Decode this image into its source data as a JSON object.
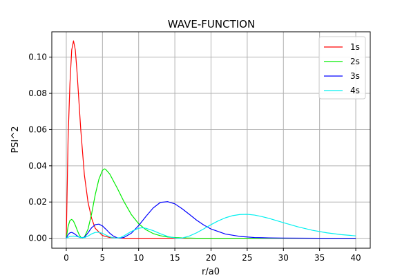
{
  "chart_data": {
    "type": "line",
    "title": "WAVE-FUNCTION",
    "xlabel": "r/a0",
    "ylabel": "PSI^2",
    "xlim": [
      -2,
      42
    ],
    "ylim": [
      -0.0055,
      0.114
    ],
    "xticks": [
      0,
      5,
      10,
      15,
      20,
      25,
      30,
      35,
      40
    ],
    "yticks": [
      0.0,
      0.02,
      0.04,
      0.06,
      0.08,
      0.1
    ],
    "ytick_labels": [
      "0.00",
      "0.02",
      "0.04",
      "0.06",
      "0.08",
      "0.10"
    ],
    "grid": true,
    "legend_position": "top-right",
    "series": [
      {
        "name": "1s",
        "color": "#ff0000",
        "x": [
          0,
          0.25,
          0.5,
          0.75,
          1.0,
          1.25,
          1.5,
          2.0,
          2.5,
          3.0,
          3.5,
          4.0,
          5.0,
          6.0,
          8.0,
          10,
          15,
          20,
          40
        ],
        "y": [
          0,
          0.055,
          0.085,
          0.104,
          0.109,
          0.104,
          0.091,
          0.06,
          0.035,
          0.02,
          0.011,
          0.0055,
          0.0015,
          0.0004,
          0.0,
          0.0,
          0.0,
          0.0,
          0.0
        ]
      },
      {
        "name": "2s",
        "color": "#00ee00",
        "x": [
          0,
          0.25,
          0.5,
          0.75,
          1.0,
          1.25,
          1.5,
          1.75,
          2.0,
          2.25,
          2.5,
          3.0,
          3.5,
          4.0,
          4.5,
          5.0,
          5.3,
          5.5,
          6.0,
          7.0,
          8.0,
          9.0,
          10,
          11,
          12,
          13,
          14,
          15,
          16,
          18,
          20,
          25,
          40
        ],
        "y": [
          0,
          0.0065,
          0.0098,
          0.0104,
          0.0094,
          0.0072,
          0.0046,
          0.0022,
          0.0006,
          0.0001,
          0.0006,
          0.005,
          0.0135,
          0.024,
          0.0325,
          0.0375,
          0.0383,
          0.0378,
          0.0355,
          0.028,
          0.02,
          0.013,
          0.008,
          0.0047,
          0.0026,
          0.0014,
          0.0007,
          0.0004,
          0.0002,
          0.0,
          0.0,
          0.0,
          0.0
        ]
      },
      {
        "name": "3s",
        "color": "#0000ff",
        "x": [
          0,
          0.25,
          0.5,
          0.75,
          1.0,
          1.25,
          1.5,
          1.75,
          2.0,
          2.5,
          3.0,
          3.5,
          4.0,
          4.5,
          5.0,
          5.5,
          6.0,
          6.5,
          7.0,
          7.5,
          8.0,
          9.0,
          10,
          11,
          12,
          13,
          14,
          15,
          16,
          17,
          18,
          19,
          20,
          22,
          24,
          26,
          28,
          30,
          35,
          40
        ],
        "y": [
          0,
          0.002,
          0.003,
          0.0032,
          0.0028,
          0.0021,
          0.0013,
          0.0007,
          0.0003,
          0.0005,
          0.003,
          0.0058,
          0.0075,
          0.0078,
          0.0068,
          0.0049,
          0.0028,
          0.0012,
          0.0003,
          0.0001,
          0.0005,
          0.0028,
          0.007,
          0.012,
          0.0167,
          0.0198,
          0.0202,
          0.019,
          0.0163,
          0.0132,
          0.01,
          0.0073,
          0.0051,
          0.0023,
          0.001,
          0.0004,
          0.0002,
          0.0001,
          0.0,
          0.0
        ]
      },
      {
        "name": "4s",
        "color": "#00f0f0",
        "x": [
          0,
          0.5,
          1.0,
          1.5,
          2.0,
          2.5,
          3.0,
          3.5,
          4.0,
          4.5,
          5.0,
          5.5,
          6.0,
          6.5,
          7.0,
          7.5,
          8.0,
          9.0,
          10,
          10.5,
          11,
          12,
          13,
          14,
          15,
          15.5,
          16,
          17,
          18,
          19,
          20,
          21,
          22,
          23,
          24,
          25,
          26,
          27,
          28,
          29,
          30,
          32,
          34,
          36,
          38,
          40
        ],
        "y": [
          0,
          0.001,
          0.0012,
          0.0009,
          0.0004,
          0.0003,
          0.0012,
          0.0024,
          0.0032,
          0.0033,
          0.0027,
          0.0017,
          0.0008,
          0.0002,
          0.0001,
          0.0004,
          0.0014,
          0.0038,
          0.0055,
          0.0058,
          0.0055,
          0.0042,
          0.0025,
          0.001,
          0.0002,
          0.0,
          0.0001,
          0.0012,
          0.003,
          0.0052,
          0.0075,
          0.0096,
          0.0113,
          0.0125,
          0.0131,
          0.0132,
          0.0128,
          0.012,
          0.011,
          0.0098,
          0.0086,
          0.0063,
          0.0044,
          0.003,
          0.002,
          0.0013
        ]
      }
    ]
  }
}
